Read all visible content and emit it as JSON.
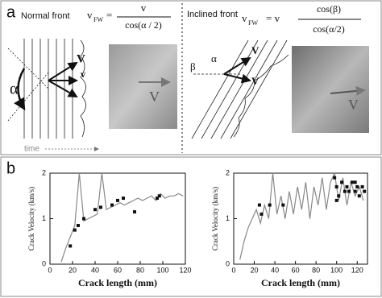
{
  "figure": {
    "panel_a": {
      "label": "a",
      "left": {
        "title": "Normal front",
        "lhs": "v",
        "lhs_sub": "FW",
        "equals": "=",
        "numerator": "v",
        "denominator": "cos(α / 2)",
        "angle": "α",
        "arrow_big": "V",
        "arrow_small": "v",
        "time": "time",
        "image_arrow": "V"
      },
      "right": {
        "title": "Inclined front",
        "lhs": "v",
        "lhs_sub": "FW",
        "equals": "= v",
        "numerator": "cos(β)",
        "denominator": "cos(α/2)",
        "angle_beta": "β",
        "angle_alpha": "α",
        "arrow_big": "V",
        "arrow_small": "V",
        "image_arrow": "V"
      }
    },
    "panel_b": {
      "label": "b"
    }
  },
  "chart_data": [
    {
      "type": "line",
      "xlabel": "Crack length (mm)",
      "ylabel": "Crack Velocity (km/s)",
      "xlim": [
        0,
        120
      ],
      "xticks": [
        0,
        20,
        40,
        60,
        80,
        100,
        120
      ],
      "ylim": [
        0,
        2
      ],
      "yticks": [
        0,
        1,
        2
      ],
      "series": [
        {
          "kind": "line",
          "color": "#888888",
          "x": [
            10,
            14,
            18,
            22,
            26,
            30,
            34,
            38,
            42,
            46,
            50,
            54,
            58,
            62,
            66,
            70,
            74,
            78,
            82,
            86,
            90,
            94,
            98,
            102,
            106,
            110,
            114,
            118
          ],
          "values": [
            0.05,
            0.35,
            0.6,
            0.85,
            2.0,
            0.95,
            1.0,
            1.05,
            1.1,
            2.0,
            1.2,
            1.25,
            1.3,
            1.35,
            1.3,
            1.35,
            1.4,
            1.45,
            1.4,
            1.45,
            1.5,
            1.4,
            1.55,
            1.45,
            1.5,
            1.5,
            1.55,
            1.5
          ]
        },
        {
          "kind": "scatter",
          "color": "#111111",
          "x": [
            18,
            22,
            25,
            30,
            40,
            45,
            55,
            60,
            65,
            75,
            95,
            97
          ],
          "values": [
            0.4,
            0.75,
            0.85,
            1.0,
            1.2,
            1.25,
            1.3,
            1.4,
            1.45,
            1.15,
            1.45,
            1.5
          ]
        }
      ]
    },
    {
      "type": "line",
      "xlabel": "Crack length (mm)",
      "ylabel": "Crack Velocity (km/s)",
      "xlim": [
        0,
        130
      ],
      "xticks": [
        0,
        20,
        40,
        60,
        80,
        100,
        120
      ],
      "ylim": [
        0,
        2
      ],
      "yticks": [
        0,
        1,
        2
      ],
      "series": [
        {
          "kind": "line",
          "color": "#888888",
          "x": [
            6,
            10,
            14,
            18,
            22,
            26,
            30,
            34,
            38,
            42,
            46,
            50,
            54,
            58,
            62,
            66,
            70,
            74,
            78,
            82,
            86,
            90,
            94,
            98,
            102,
            106,
            110,
            114,
            118,
            122,
            126
          ],
          "values": [
            0.1,
            0.5,
            0.8,
            1.0,
            1.2,
            0.9,
            1.3,
            1.0,
            2.0,
            1.1,
            1.5,
            1.0,
            1.6,
            1.1,
            1.7,
            1.2,
            1.8,
            1.0,
            1.7,
            1.3,
            1.9,
            1.2,
            1.8,
            2.0,
            1.4,
            1.9,
            1.3,
            1.8,
            1.5,
            1.7,
            1.4
          ]
        },
        {
          "kind": "scatter",
          "color": "#111111",
          "x": [
            25,
            27,
            35,
            48,
            98,
            100,
            102,
            105,
            108,
            110,
            112,
            115,
            118,
            120,
            122,
            125,
            127,
            100,
            118
          ],
          "values": [
            1.3,
            1.1,
            1.3,
            1.3,
            1.9,
            1.7,
            1.5,
            1.8,
            1.6,
            1.7,
            1.6,
            1.8,
            1.6,
            1.7,
            1.5,
            1.7,
            1.6,
            1.4,
            1.8
          ]
        }
      ]
    }
  ]
}
